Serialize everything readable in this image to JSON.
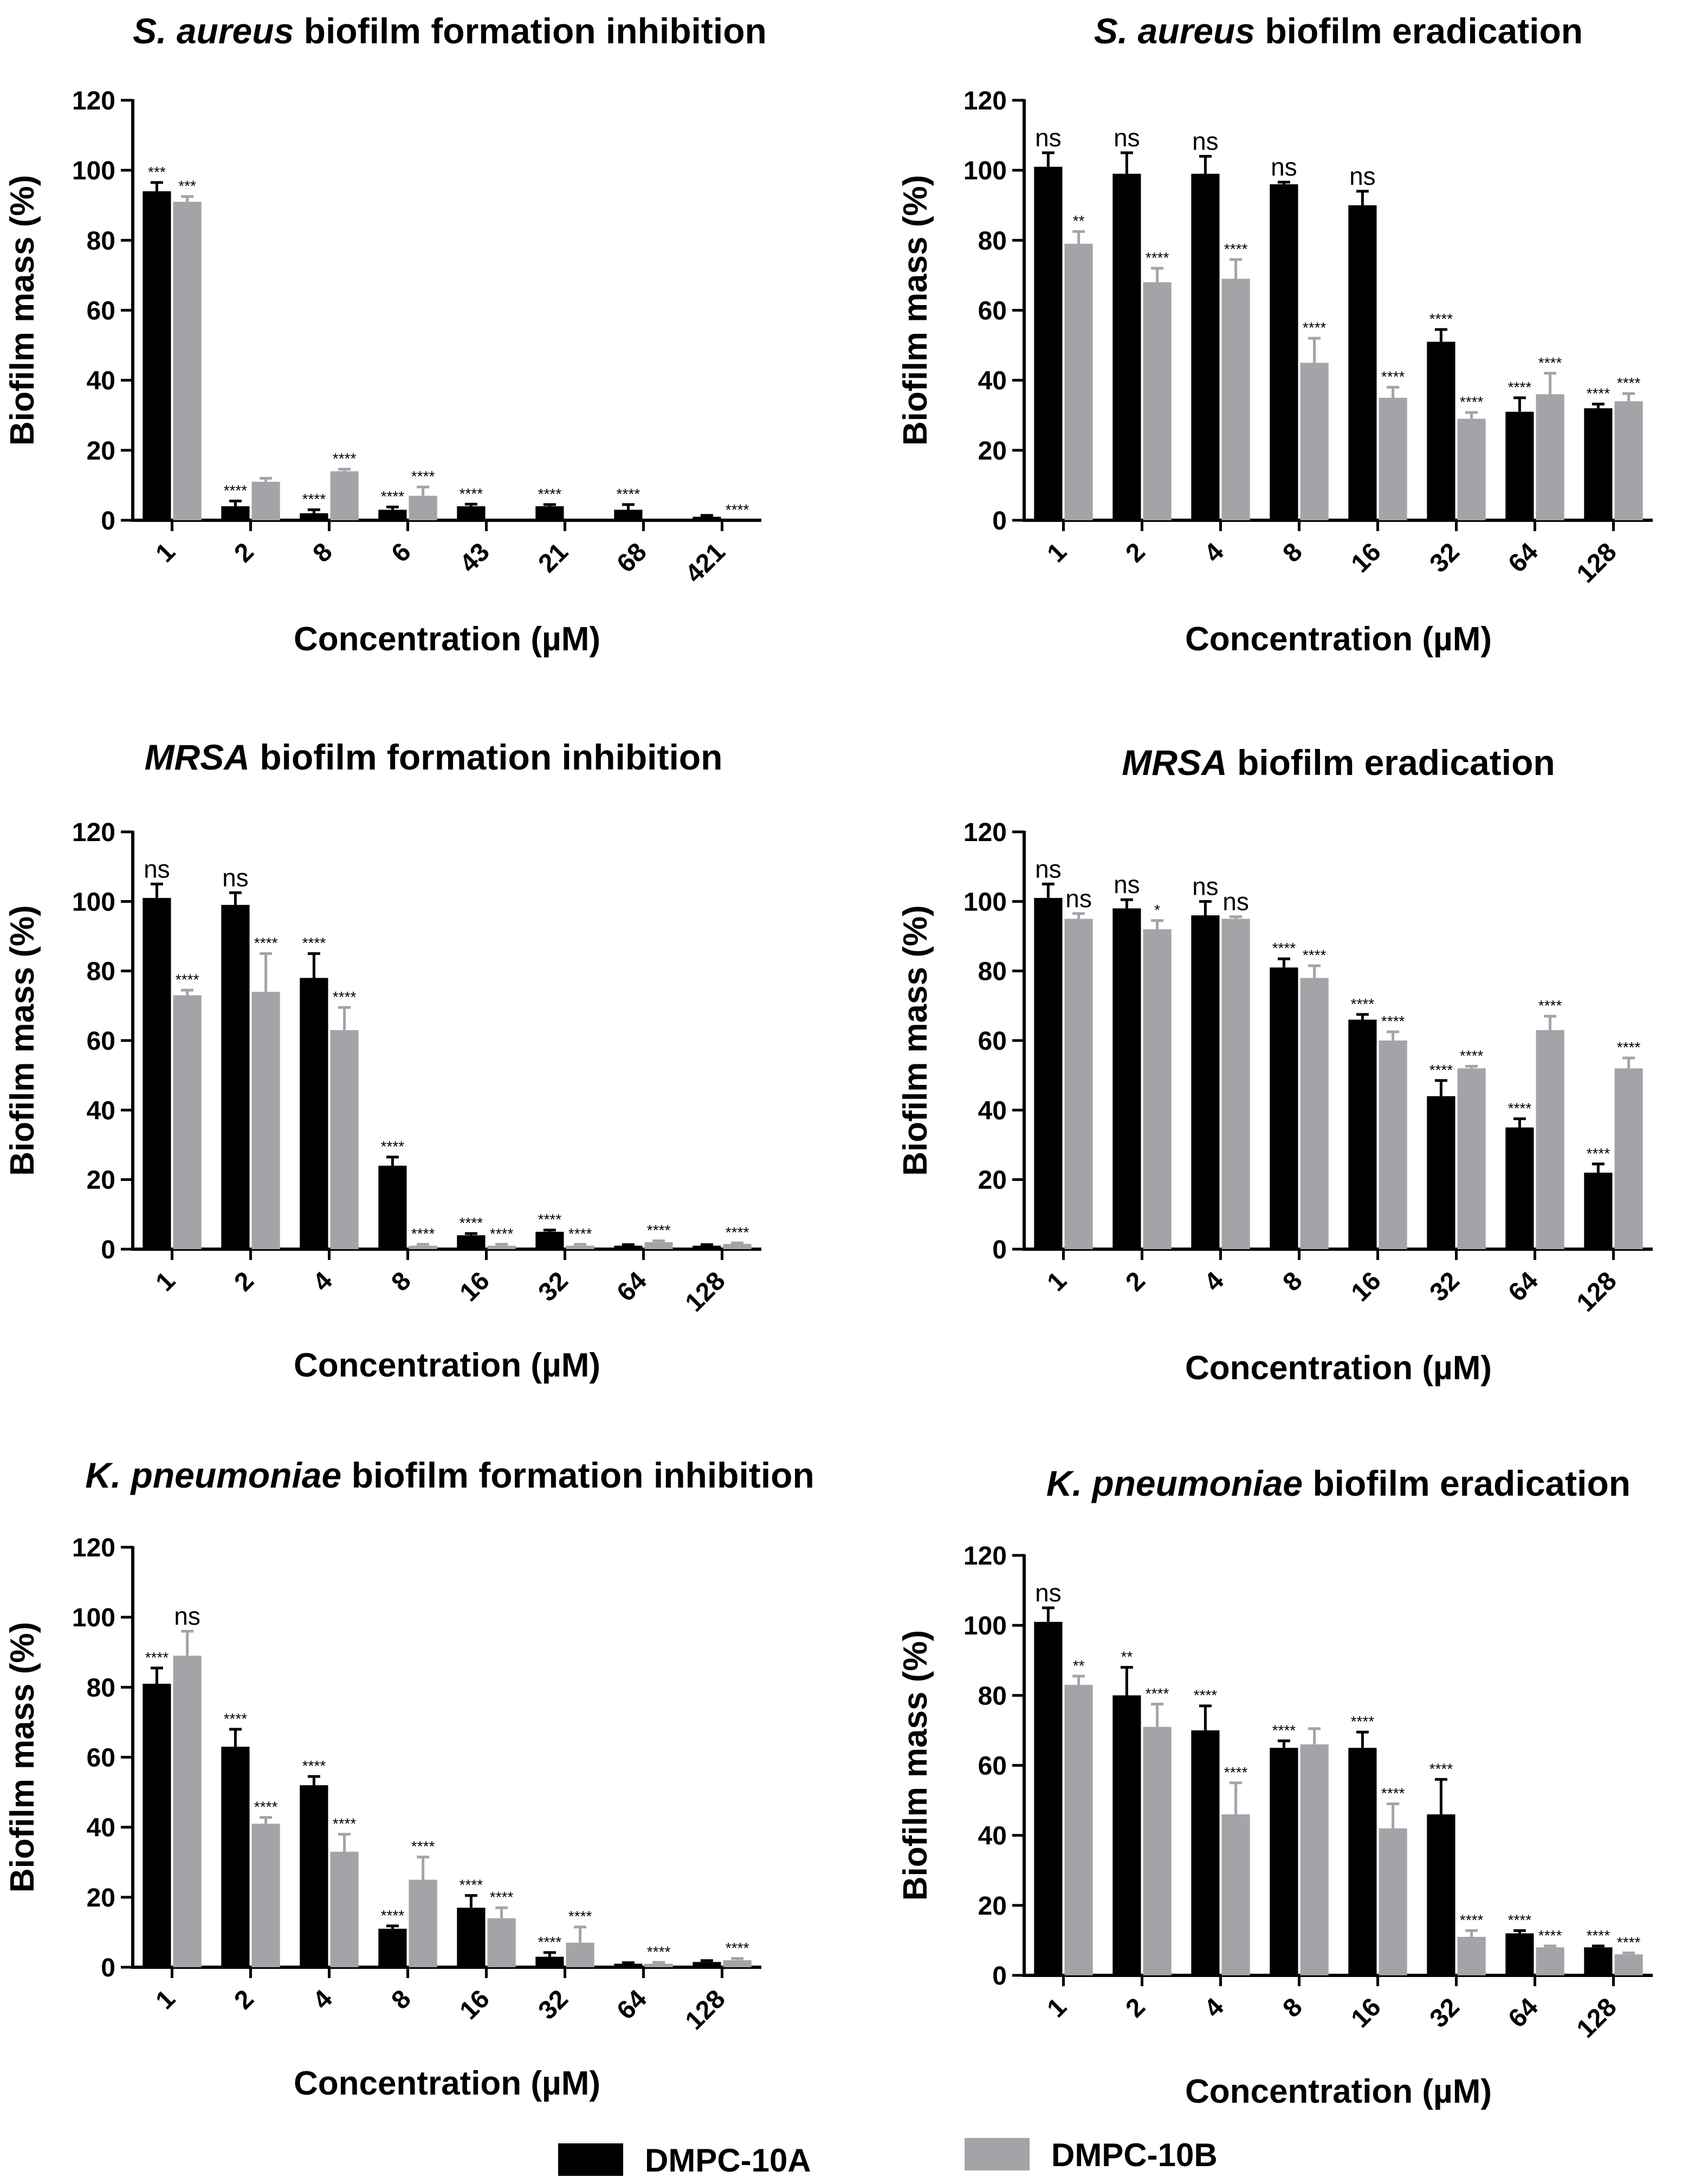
{
  "legend": [
    {
      "name": "DMPC-10A",
      "color": "#000000"
    },
    {
      "name": "DMPC-10B",
      "color": "#a3a4a7"
    }
  ],
  "chart_data": [
    {
      "type": "bar",
      "title_italic": "S. aureus",
      "title_rest": " biofilm formation inhibition",
      "xlabel": "Concentration (µM)",
      "ylabel": "Biofilm mass (%)",
      "ylim": [
        0,
        120
      ],
      "yticks": [
        "0",
        "20",
        "40",
        "60",
        "80",
        "100",
        "120"
      ],
      "categories": [
        "1",
        "2",
        "8",
        "6",
        "43",
        "21",
        "68",
        "421"
      ],
      "series": [
        {
          "name": "DMPC-10A",
          "values": [
            94,
            4,
            2,
            3,
            4,
            4,
            3,
            1
          ],
          "errors": [
            2.5,
            1.5,
            1,
            0.8,
            0.6,
            0.5,
            1.5,
            0.4
          ],
          "annotations": [
            "***",
            "****",
            "****",
            "****",
            "****",
            "****",
            "****",
            ""
          ]
        },
        {
          "name": "DMPC-10B",
          "values": [
            91,
            11,
            14,
            7,
            0,
            0,
            0,
            0
          ],
          "errors": [
            1.5,
            1,
            0.6,
            2.5,
            0,
            0,
            0,
            0
          ],
          "annotations": [
            "***",
            "",
            "****",
            "****",
            "",
            "",
            "",
            "****"
          ]
        }
      ]
    },
    {
      "type": "bar",
      "title_italic": "S. aureus",
      "title_rest": " biofilm eradication",
      "xlabel": "Concentration (µM)",
      "ylabel": "Biofilm mass (%)",
      "ylim": [
        0,
        120
      ],
      "yticks": [
        "0",
        "20",
        "40",
        "60",
        "80",
        "100",
        "120"
      ],
      "categories": [
        "1",
        "2",
        "4",
        "8",
        "16",
        "32",
        "64",
        "128"
      ],
      "series": [
        {
          "name": "DMPC-10A",
          "values": [
            101,
            99,
            99,
            96,
            90,
            51,
            31,
            32
          ],
          "errors": [
            4,
            6,
            5,
            0.6,
            4,
            3.5,
            4,
            1.2
          ],
          "annotations": [
            "ns",
            "ns",
            "ns",
            "ns",
            "ns",
            "****",
            "****",
            "****"
          ]
        },
        {
          "name": "DMPC-10B",
          "values": [
            79,
            68,
            69,
            45,
            35,
            29,
            36,
            34
          ],
          "errors": [
            3.5,
            4,
            5.5,
            7,
            3,
            1.8,
            6,
            2.2
          ],
          "annotations": [
            "**",
            "****",
            "****",
            "****",
            "****",
            "****",
            "****",
            "****"
          ]
        }
      ]
    },
    {
      "type": "bar",
      "title_italic": "MRSA",
      "title_rest": " biofilm formation inhibition",
      "xlabel": "Concentration (µM)",
      "ylabel": "Biofilm mass (%)",
      "ylim": [
        0,
        120
      ],
      "yticks": [
        "0",
        "20",
        "40",
        "60",
        "80",
        "100",
        "120"
      ],
      "categories": [
        "1",
        "2",
        "4",
        "8",
        "16",
        "32",
        "64",
        "128"
      ],
      "series": [
        {
          "name": "DMPC-10A",
          "values": [
            101,
            99,
            78,
            24,
            4,
            5,
            1,
            1
          ],
          "errors": [
            4,
            3.5,
            7,
            2.5,
            0.5,
            0.5,
            0.3,
            0.3
          ],
          "annotations": [
            "ns",
            "ns",
            "****",
            "****",
            "****",
            "****",
            "",
            ""
          ]
        },
        {
          "name": "DMPC-10B",
          "values": [
            73,
            74,
            63,
            1,
            1,
            1,
            2,
            1.5
          ],
          "errors": [
            1.5,
            11,
            6.5,
            0.4,
            0.4,
            0.4,
            0.4,
            0.3
          ],
          "annotations": [
            "****",
            "****",
            "****",
            "****",
            "****",
            "****",
            "****",
            "****"
          ]
        }
      ]
    },
    {
      "type": "bar",
      "title_italic": "MRSA",
      "title_rest": " biofilm eradication",
      "xlabel": "Concentration (µM)",
      "ylabel": "Biofilm mass (%)",
      "ylim": [
        0,
        120
      ],
      "yticks": [
        "0",
        "20",
        "40",
        "60",
        "80",
        "100",
        "120"
      ],
      "categories": [
        "1",
        "2",
        "4",
        "8",
        "16",
        "32",
        "64",
        "128"
      ],
      "series": [
        {
          "name": "DMPC-10A",
          "values": [
            101,
            98,
            96,
            81,
            66,
            44,
            35,
            22
          ],
          "errors": [
            4,
            2.5,
            4,
            2.5,
            1.5,
            4.5,
            2.5,
            2.5
          ],
          "annotations": [
            "ns",
            "ns",
            "ns",
            "****",
            "****",
            "****",
            "****",
            "****"
          ]
        },
        {
          "name": "DMPC-10B",
          "values": [
            95,
            92,
            95,
            78,
            60,
            52,
            63,
            52
          ],
          "errors": [
            1.5,
            2.5,
            0.6,
            3.5,
            2.5,
            0.6,
            4,
            3
          ],
          "annotations": [
            "ns",
            "*",
            "ns",
            "****",
            "****",
            "****",
            "****",
            "****"
          ]
        }
      ]
    },
    {
      "type": "bar",
      "title_italic": "K. pneumoniae",
      "title_rest": " biofilm formation inhibition",
      "xlabel": "Concentration (µM)",
      "ylabel": "Biofilm mass (%)",
      "ylim": [
        0,
        120
      ],
      "yticks": [
        "0",
        "20",
        "40",
        "60",
        "80",
        "100",
        "120"
      ],
      "categories": [
        "1",
        "2",
        "4",
        "8",
        "16",
        "32",
        "64",
        "128"
      ],
      "series": [
        {
          "name": "DMPC-10A",
          "values": [
            81,
            63,
            52,
            11,
            17,
            3,
            1,
            1.5
          ],
          "errors": [
            4.5,
            5,
            2.5,
            0.8,
            3.5,
            1.2,
            0.3,
            0.4
          ],
          "annotations": [
            "****",
            "****",
            "****",
            "****",
            "****",
            "****",
            "",
            ""
          ]
        },
        {
          "name": "DMPC-10B",
          "values": [
            89,
            41,
            33,
            25,
            14,
            7,
            1,
            2
          ],
          "errors": [
            7,
            1.8,
            5,
            6.5,
            3,
            4.5,
            0.4,
            0.5
          ],
          "annotations": [
            "ns",
            "****",
            "****",
            "****",
            "****",
            "****",
            "****",
            "****"
          ]
        }
      ]
    },
    {
      "type": "bar",
      "title_italic": "K. pneumoniae",
      "title_rest": " biofilm eradication",
      "xlabel": "Concentration (µM)",
      "ylabel": "Biofilm mass (%)",
      "ylim": [
        0,
        120
      ],
      "yticks": [
        "0",
        "20",
        "40",
        "60",
        "80",
        "100",
        "120"
      ],
      "categories": [
        "1",
        "2",
        "4",
        "8",
        "16",
        "32",
        "64",
        "128"
      ],
      "series": [
        {
          "name": "DMPC-10A",
          "values": [
            101,
            80,
            70,
            65,
            65,
            46,
            12,
            8
          ],
          "errors": [
            4,
            8,
            7,
            2,
            4.5,
            10,
            0.8,
            0.4
          ],
          "annotations": [
            "ns",
            "**",
            "****",
            "****",
            "****",
            "****",
            "****",
            "****"
          ]
        },
        {
          "name": "DMPC-10B",
          "values": [
            83,
            71,
            46,
            66,
            42,
            11,
            8,
            6
          ],
          "errors": [
            2.5,
            6.5,
            9,
            4.5,
            7,
            1.8,
            0.4,
            0.4
          ],
          "annotations": [
            "**",
            "****",
            "****",
            "",
            "****",
            "****",
            "****",
            "****"
          ]
        }
      ]
    }
  ]
}
